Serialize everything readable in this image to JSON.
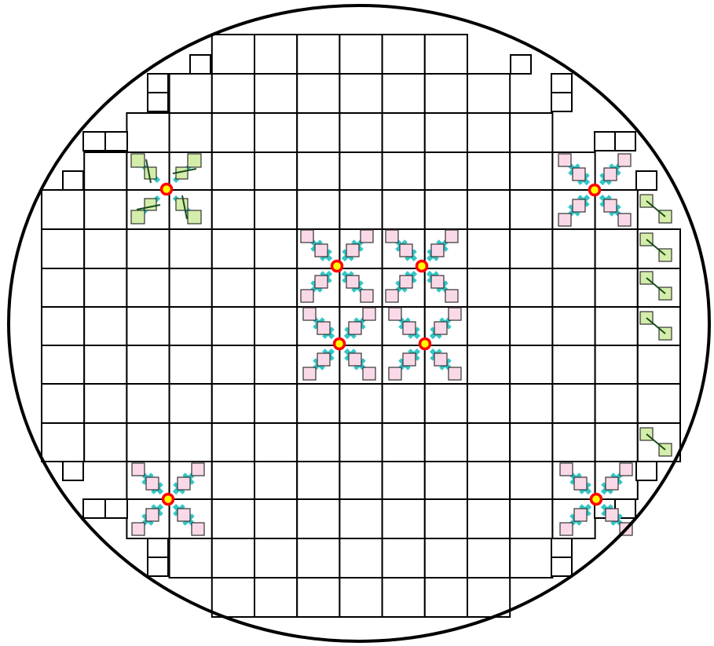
{
  "diagram": {
    "type": "wafer-die-map",
    "colors": {
      "outline": "#000000",
      "background": "#ffffff",
      "die_fill": "#ffffff",
      "marker_fill": "#ffff00",
      "marker_stroke": "#ff0000",
      "probe_arm": "#33c6c6",
      "probe_pad_fill": "#f9d9e8",
      "probe_pad_stroke": "#333333",
      "pad_fill": "#d4edaa",
      "pad_link": "#1a4d1a"
    },
    "icons": {
      "marker": "circle-marker-icon",
      "probe_cluster": "probe-cross-icon",
      "green_pads": "pad-pair-icon"
    }
  }
}
